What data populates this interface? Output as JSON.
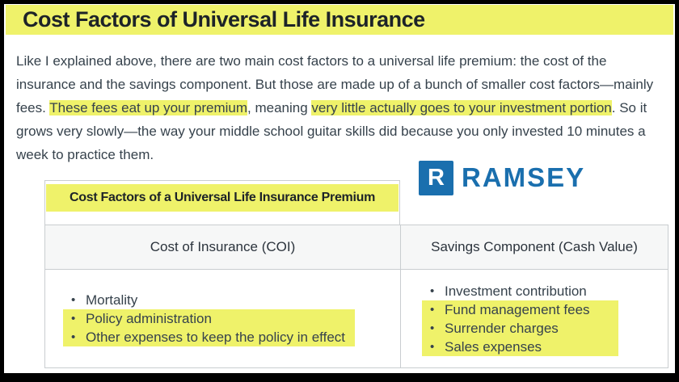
{
  "page": {
    "title": "Cost Factors of Universal Life Insurance"
  },
  "article": {
    "paragraph_segments": [
      {
        "text": "Like I explained above, there are two main cost factors to a universal life premium: the cost of the insurance and the savings component. But those are made up of a bunch of smaller cost factors—mainly fees. ",
        "highlight": false
      },
      {
        "text": "These fees eat up your premium",
        "highlight": true
      },
      {
        "text": ", meaning ",
        "highlight": false
      },
      {
        "text": "very little actually goes to your investment portion",
        "highlight": true
      },
      {
        "text": ". So it grows very slowly—the way your middle school guitar skills did because you only invested 10 minutes a week to practice them.",
        "highlight": false
      }
    ]
  },
  "logo": {
    "monogram": "R",
    "wordmark": "RAMSEY",
    "color": "#1a6fae"
  },
  "table": {
    "title": "Cost Factors of a Universal Life Insurance Premium",
    "columns": [
      {
        "header": "Cost of Insurance (COI)",
        "items": [
          {
            "text": "Mortality",
            "highlight": false
          },
          {
            "text": "Policy administration",
            "highlight": true
          },
          {
            "text": "Other expenses to keep the policy in effect",
            "highlight": true
          }
        ]
      },
      {
        "header": "Savings Component (Cash Value)",
        "items": [
          {
            "text": "Investment contribution",
            "highlight": false
          },
          {
            "text": "Fund management fees",
            "highlight": true
          },
          {
            "text": "Surrender charges",
            "highlight": true
          },
          {
            "text": "Sales expenses",
            "highlight": true
          }
        ]
      }
    ]
  },
  "colors": {
    "highlight": "#eff26a",
    "brand_blue": "#1a6fae",
    "body_text": "#36424c",
    "table_border": "#c9cdd0",
    "header_bg": "#f6f7f7"
  }
}
